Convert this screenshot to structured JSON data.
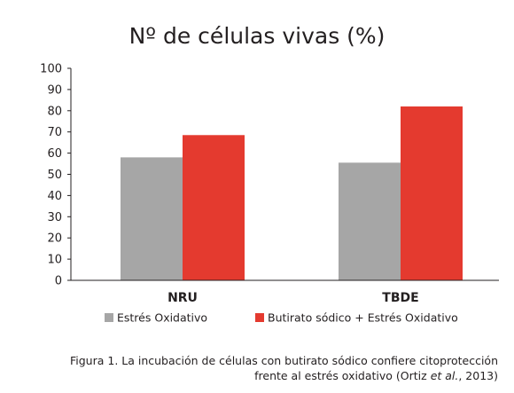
{
  "chart_data": {
    "type": "bar",
    "title": "Nº de células vivas (%)",
    "categories": [
      "NRU",
      "TBDE"
    ],
    "series": [
      {
        "name": "Estrés Oxidativo",
        "values": [
          58,
          55.5
        ],
        "color": "#a6a6a6"
      },
      {
        "name": "Butirato sódico + Estrés Oxidativo",
        "values": [
          68.5,
          82
        ],
        "color": "#e43a2f"
      }
    ],
    "ylim": [
      0,
      100
    ],
    "yticks": [
      0,
      10,
      20,
      30,
      40,
      50,
      60,
      70,
      80,
      90,
      100
    ],
    "grid": false,
    "legend_position": "bottom"
  },
  "caption": {
    "part1": "Figura 1. La incubación de células con butirato sódico confiere citoprotección",
    "part2": "frente al estrés oxidativo (Ortiz ",
    "part3": "et al.",
    "part4": ", 2013)"
  }
}
